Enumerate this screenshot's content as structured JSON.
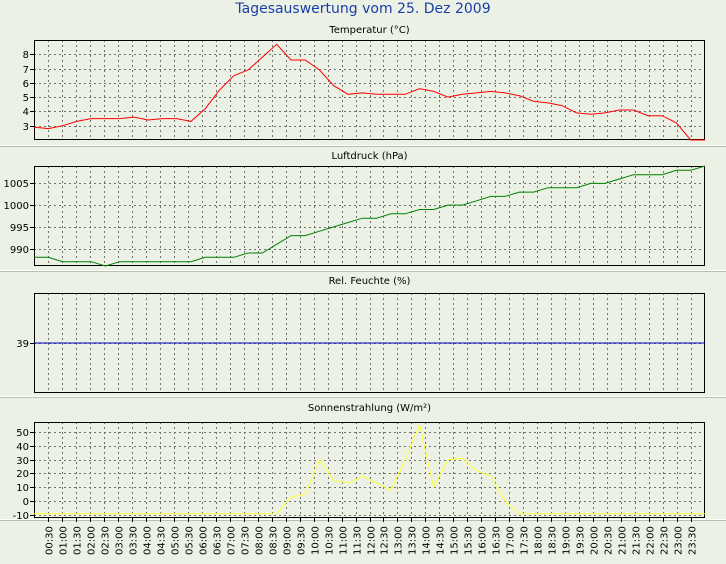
{
  "page": {
    "title": "Tagesauswertung vom 25. Dez 2009"
  },
  "chart_data": [
    {
      "type": "line",
      "title": "Temperatur (°C)",
      "series_color": "#ff0000",
      "ylim": [
        2,
        9
      ],
      "yticks": [
        3,
        4,
        5,
        6,
        7,
        8
      ],
      "x": [
        0,
        0.5,
        1,
        1.5,
        2,
        2.5,
        3,
        3.5,
        4,
        4.5,
        5,
        5.5,
        6,
        6.5,
        7,
        7.5,
        8,
        8.5,
        9,
        9.5,
        10,
        10.5,
        11,
        11.5,
        12,
        12.5,
        13,
        13.5,
        14,
        14.5,
        15,
        15.5,
        16,
        16.5,
        17,
        17.5,
        18,
        18.5,
        19,
        19.5,
        20,
        20.5,
        21,
        21.5,
        22,
        22.5,
        23,
        23.5
      ],
      "values": [
        2.9,
        2.8,
        3.0,
        3.3,
        3.5,
        3.5,
        3.5,
        3.6,
        3.4,
        3.5,
        3.5,
        3.3,
        4.2,
        5.5,
        6.5,
        6.9,
        7.8,
        8.7,
        7.6,
        7.6,
        6.9,
        5.8,
        5.2,
        5.3,
        5.2,
        5.2,
        5.2,
        5.6,
        5.4,
        5.0,
        5.2,
        5.3,
        5.4,
        5.3,
        5.1,
        4.7,
        4.6,
        4.4,
        3.9,
        3.8,
        3.9,
        4.1,
        4.1,
        3.7,
        3.7,
        3.2,
        2.0,
        2.0
      ]
    },
    {
      "type": "line",
      "title": "Luftdruck (hPa)",
      "series_color": "#008000",
      "ylim": [
        986,
        1009
      ],
      "yticks": [
        990,
        995,
        1000,
        1005
      ],
      "x": [
        0,
        0.5,
        1,
        1.5,
        2,
        2.5,
        3,
        3.5,
        4,
        4.5,
        5,
        5.5,
        6,
        6.5,
        7,
        7.5,
        8,
        8.5,
        9,
        9.5,
        10,
        10.5,
        11,
        11.5,
        12,
        12.5,
        13,
        13.5,
        14,
        14.5,
        15,
        15.5,
        16,
        16.5,
        17,
        17.5,
        18,
        18.5,
        19,
        19.5,
        20,
        20.5,
        21,
        21.5,
        22,
        22.5,
        23,
        23.5
      ],
      "values": [
        988,
        988,
        987,
        987,
        987,
        986,
        987,
        987,
        987,
        987,
        987,
        987,
        988,
        988,
        988,
        989,
        989,
        991,
        993,
        993,
        994,
        995,
        996,
        997,
        997,
        998,
        998,
        999,
        999,
        1000,
        1000,
        1001,
        1002,
        1002,
        1003,
        1003,
        1004,
        1004,
        1004,
        1005,
        1005,
        1006,
        1007,
        1007,
        1007,
        1008,
        1008,
        1009
      ]
    },
    {
      "type": "line",
      "title": "Rel. Feuchte (%)",
      "series_color": "#0000c0",
      "ylim": [
        32,
        46
      ],
      "yticks": [
        39
      ],
      "x": [
        0,
        23.5
      ],
      "values": [
        39,
        39
      ]
    },
    {
      "type": "line",
      "title": "Sonnenstrahlung (W/m²)",
      "series_color": "#ffff33",
      "ylim": [
        -12,
        57
      ],
      "yticks": [
        -10,
        0,
        10,
        20,
        30,
        40,
        50
      ],
      "x": [
        0,
        0.5,
        1,
        1.5,
        2,
        2.5,
        3,
        3.5,
        4,
        4.5,
        5,
        5.5,
        6,
        6.5,
        7,
        7.5,
        8,
        8.5,
        9,
        9.5,
        10,
        10.5,
        11,
        11.5,
        12,
        12.5,
        13,
        13.5,
        14,
        14.5,
        15,
        15.5,
        16,
        16.5,
        17,
        17.5,
        18,
        18.5,
        19,
        19.5,
        20,
        20.5,
        21,
        21.5,
        22,
        22.5,
        23,
        23.5
      ],
      "values": [
        -9,
        -9,
        -9,
        -9,
        -9,
        -9,
        -9,
        -9,
        -9,
        -9,
        -9,
        -9,
        -9,
        -9,
        -9,
        -9,
        -9,
        -9,
        3,
        5,
        30,
        15,
        13,
        18,
        13,
        8,
        30,
        55,
        10,
        30,
        31,
        22,
        18,
        0,
        -9,
        -9,
        -9,
        -9,
        -9,
        -9,
        -9,
        -9,
        -9,
        -9,
        -9,
        -9,
        -9,
        -9
      ]
    }
  ],
  "x_axis": {
    "ticks": [
      "00:30",
      "01:00",
      "01:30",
      "02:00",
      "02:30",
      "03:00",
      "03:30",
      "04:00",
      "04:30",
      "05:00",
      "05:30",
      "06:00",
      "06:30",
      "07:00",
      "07:30",
      "08:00",
      "08:30",
      "09:00",
      "09:30",
      "10:00",
      "10:30",
      "11:00",
      "11:30",
      "12:00",
      "12:30",
      "13:00",
      "13:30",
      "14:00",
      "14:30",
      "15:00",
      "15:30",
      "16:00",
      "16:30",
      "17:00",
      "17:30",
      "18:00",
      "18:30",
      "19:00",
      "19:30",
      "20:00",
      "20:30",
      "21:00",
      "21:30",
      "22:00",
      "22:30",
      "23:00",
      "23:30"
    ]
  },
  "colors": {
    "background": "#ecf1e6",
    "plot_area": "#ecf1e6",
    "title": "#1a3ea8"
  }
}
